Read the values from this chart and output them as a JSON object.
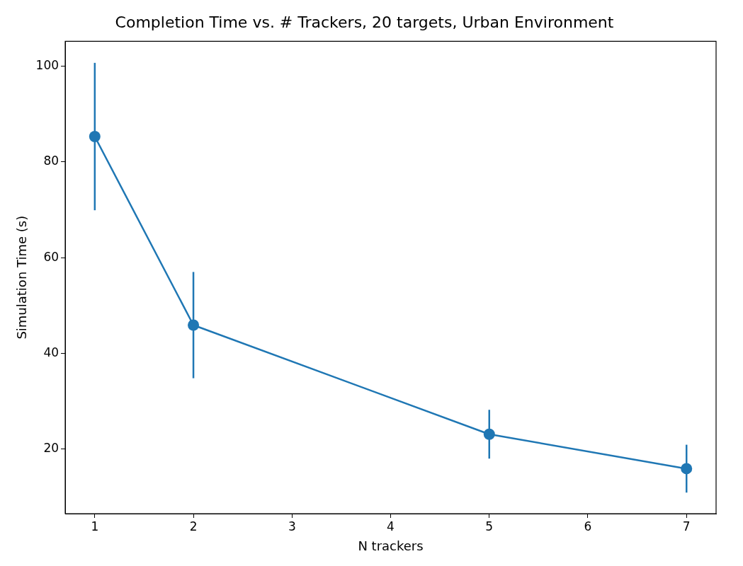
{
  "chart_data": {
    "type": "line",
    "title": "Completion Time vs. # Trackers, 20 targets, Urban Environment",
    "xlabel": "N trackers",
    "ylabel": "Simulation Time (s)",
    "x": [
      1,
      2,
      5,
      7
    ],
    "series": [
      {
        "color": "#1f77b4",
        "values": [
          85.3,
          45.9,
          23.1,
          15.9
        ],
        "errors": [
          15.4,
          11.1,
          5.1,
          5.0
        ]
      }
    ],
    "marker": "circle",
    "xlim": [
      0.7,
      7.3
    ],
    "xticks": [
      1,
      2,
      3,
      4,
      5,
      6,
      7
    ],
    "ylim": [
      6.5,
      105.2
    ],
    "yticks": [
      20,
      40,
      60,
      80,
      100
    ],
    "grid": false,
    "legend": false
  }
}
